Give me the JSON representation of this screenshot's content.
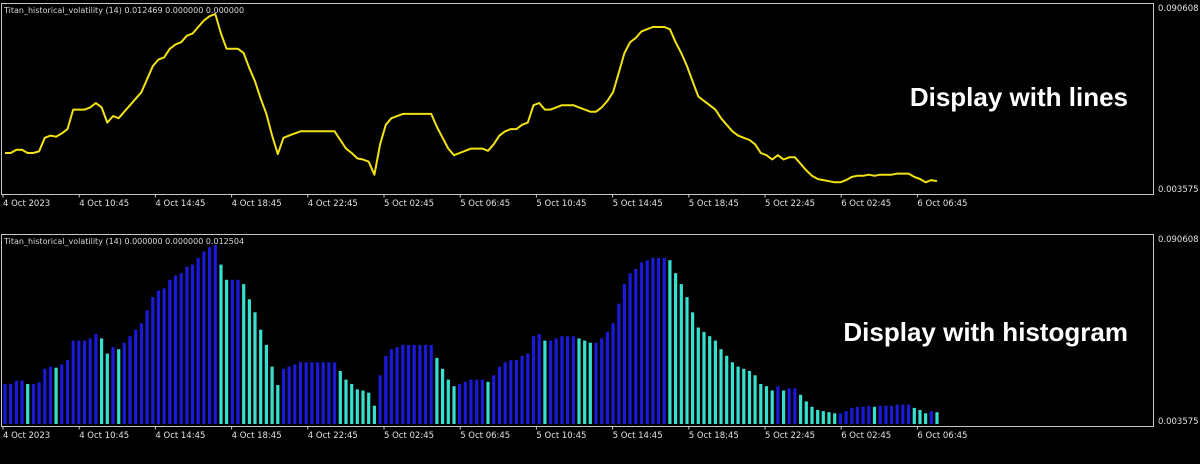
{
  "colors": {
    "background": "#000000",
    "frame": "#c8c8c8",
    "line_series": "#f2e214",
    "histogram_dark": "#1a1ad8",
    "histogram_light": "#36e0d0",
    "text": "#e0e0e0"
  },
  "chart_data": [
    {
      "type": "line",
      "indicator_label": "Titan_historical_volatility (14) 0.012469 0.000000 0.000000",
      "annotation": "Display with lines",
      "ylim": [
        0.003575,
        0.090608
      ],
      "y_tick_labels": [
        "0.090608",
        "0.003575"
      ],
      "x_tick_labels": [
        "4 Oct 2023",
        "4 Oct 10:45",
        "4 Oct 14:45",
        "4 Oct 18:45",
        "4 Oct 22:45",
        "5 Oct 02:45",
        "5 Oct 06:45",
        "5 Oct 10:45",
        "5 Oct 14:45",
        "5 Oct 18:45",
        "5 Oct 22:45",
        "6 Oct 02:45",
        "6 Oct 06:45"
      ],
      "series": [
        {
          "values": [
            0.022,
            0.022,
            0.0235,
            0.0235,
            0.022,
            0.022,
            0.0228,
            0.029,
            0.03,
            0.0295,
            0.031,
            0.033,
            0.042,
            0.042,
            0.042,
            0.043,
            0.045,
            0.043,
            0.036,
            0.039,
            0.038,
            0.041,
            0.044,
            0.047,
            0.05,
            0.056,
            0.062,
            0.065,
            0.066,
            0.07,
            0.072,
            0.073,
            0.076,
            0.077,
            0.08,
            0.083,
            0.085,
            0.086,
            0.077,
            0.07,
            0.07,
            0.07,
            0.068,
            0.061,
            0.055,
            0.047,
            0.04,
            0.03,
            0.0215,
            0.029,
            0.03,
            0.031,
            0.032,
            0.032,
            0.032,
            0.032,
            0.032,
            0.032,
            0.032,
            0.028,
            0.024,
            0.022,
            0.0195,
            0.019,
            0.018,
            0.012,
            0.026,
            0.035,
            0.038,
            0.039,
            0.04,
            0.04,
            0.04,
            0.04,
            0.04,
            0.04,
            0.034,
            0.029,
            0.024,
            0.021,
            0.022,
            0.023,
            0.024,
            0.024,
            0.024,
            0.023,
            0.026,
            0.03,
            0.032,
            0.033,
            0.033,
            0.035,
            0.036,
            0.044,
            0.045,
            0.042,
            0.042,
            0.043,
            0.044,
            0.044,
            0.044,
            0.043,
            0.042,
            0.041,
            0.041,
            0.043,
            0.046,
            0.05,
            0.059,
            0.068,
            0.073,
            0.075,
            0.078,
            0.079,
            0.08,
            0.08,
            0.08,
            0.079,
            0.073,
            0.068,
            0.062,
            0.055,
            0.048,
            0.046,
            0.044,
            0.042,
            0.038,
            0.035,
            0.032,
            0.03,
            0.029,
            0.028,
            0.026,
            0.022,
            0.021,
            0.019,
            0.021,
            0.019,
            0.02,
            0.02,
            0.017,
            0.014,
            0.0115,
            0.01,
            0.0095,
            0.009,
            0.0085,
            0.0085,
            0.0095,
            0.011,
            0.0115,
            0.0115,
            0.012,
            0.0115,
            0.012,
            0.012,
            0.012,
            0.0125,
            0.0125,
            0.0125,
            0.011,
            0.01,
            0.0085,
            0.0095,
            0.009
          ]
        }
      ]
    },
    {
      "type": "bar",
      "indicator_label": "Titan_historical_volatility (14) 0.000000 0.000000 0.012504",
      "annotation": "Display with histogram",
      "ylim": [
        0.003575,
        0.090608
      ],
      "y_tick_labels": [
        "0.090608",
        "0.003575"
      ],
      "x_tick_labels": [
        "4 Oct 2023",
        "4 Oct 10:45",
        "4 Oct 14:45",
        "4 Oct 18:45",
        "4 Oct 22:45",
        "5 Oct 02:45",
        "5 Oct 06:45",
        "5 Oct 10:45",
        "5 Oct 14:45",
        "5 Oct 18:45",
        "5 Oct 22:45",
        "6 Oct 02:45",
        "6 Oct 06:45"
      ],
      "series": [
        {
          "values": [
            0.022,
            0.022,
            0.0235,
            0.0235,
            0.022,
            0.022,
            0.0228,
            0.029,
            0.03,
            0.0295,
            0.031,
            0.033,
            0.042,
            0.042,
            0.042,
            0.043,
            0.045,
            0.043,
            0.036,
            0.039,
            0.038,
            0.041,
            0.044,
            0.047,
            0.05,
            0.056,
            0.062,
            0.065,
            0.066,
            0.07,
            0.072,
            0.073,
            0.076,
            0.077,
            0.08,
            0.083,
            0.085,
            0.086,
            0.077,
            0.07,
            0.07,
            0.07,
            0.068,
            0.061,
            0.055,
            0.047,
            0.04,
            0.03,
            0.0215,
            0.029,
            0.03,
            0.031,
            0.032,
            0.032,
            0.032,
            0.032,
            0.032,
            0.032,
            0.032,
            0.028,
            0.024,
            0.022,
            0.0195,
            0.019,
            0.018,
            0.012,
            0.026,
            0.035,
            0.038,
            0.039,
            0.04,
            0.04,
            0.04,
            0.04,
            0.04,
            0.04,
            0.034,
            0.029,
            0.024,
            0.021,
            0.022,
            0.023,
            0.024,
            0.024,
            0.024,
            0.023,
            0.026,
            0.03,
            0.032,
            0.033,
            0.033,
            0.035,
            0.036,
            0.044,
            0.045,
            0.042,
            0.042,
            0.043,
            0.044,
            0.044,
            0.044,
            0.043,
            0.042,
            0.041,
            0.041,
            0.043,
            0.046,
            0.05,
            0.059,
            0.068,
            0.073,
            0.075,
            0.078,
            0.079,
            0.08,
            0.08,
            0.08,
            0.079,
            0.073,
            0.068,
            0.062,
            0.055,
            0.048,
            0.046,
            0.044,
            0.042,
            0.038,
            0.035,
            0.032,
            0.03,
            0.029,
            0.028,
            0.026,
            0.022,
            0.021,
            0.019,
            0.021,
            0.019,
            0.02,
            0.02,
            0.017,
            0.014,
            0.0115,
            0.01,
            0.0095,
            0.009,
            0.0085,
            0.0085,
            0.0095,
            0.011,
            0.0115,
            0.0115,
            0.012,
            0.0115,
            0.012,
            0.012,
            0.012,
            0.0125,
            0.0125,
            0.0125,
            0.011,
            0.01,
            0.0085,
            0.0095,
            0.009
          ]
        }
      ]
    }
  ]
}
